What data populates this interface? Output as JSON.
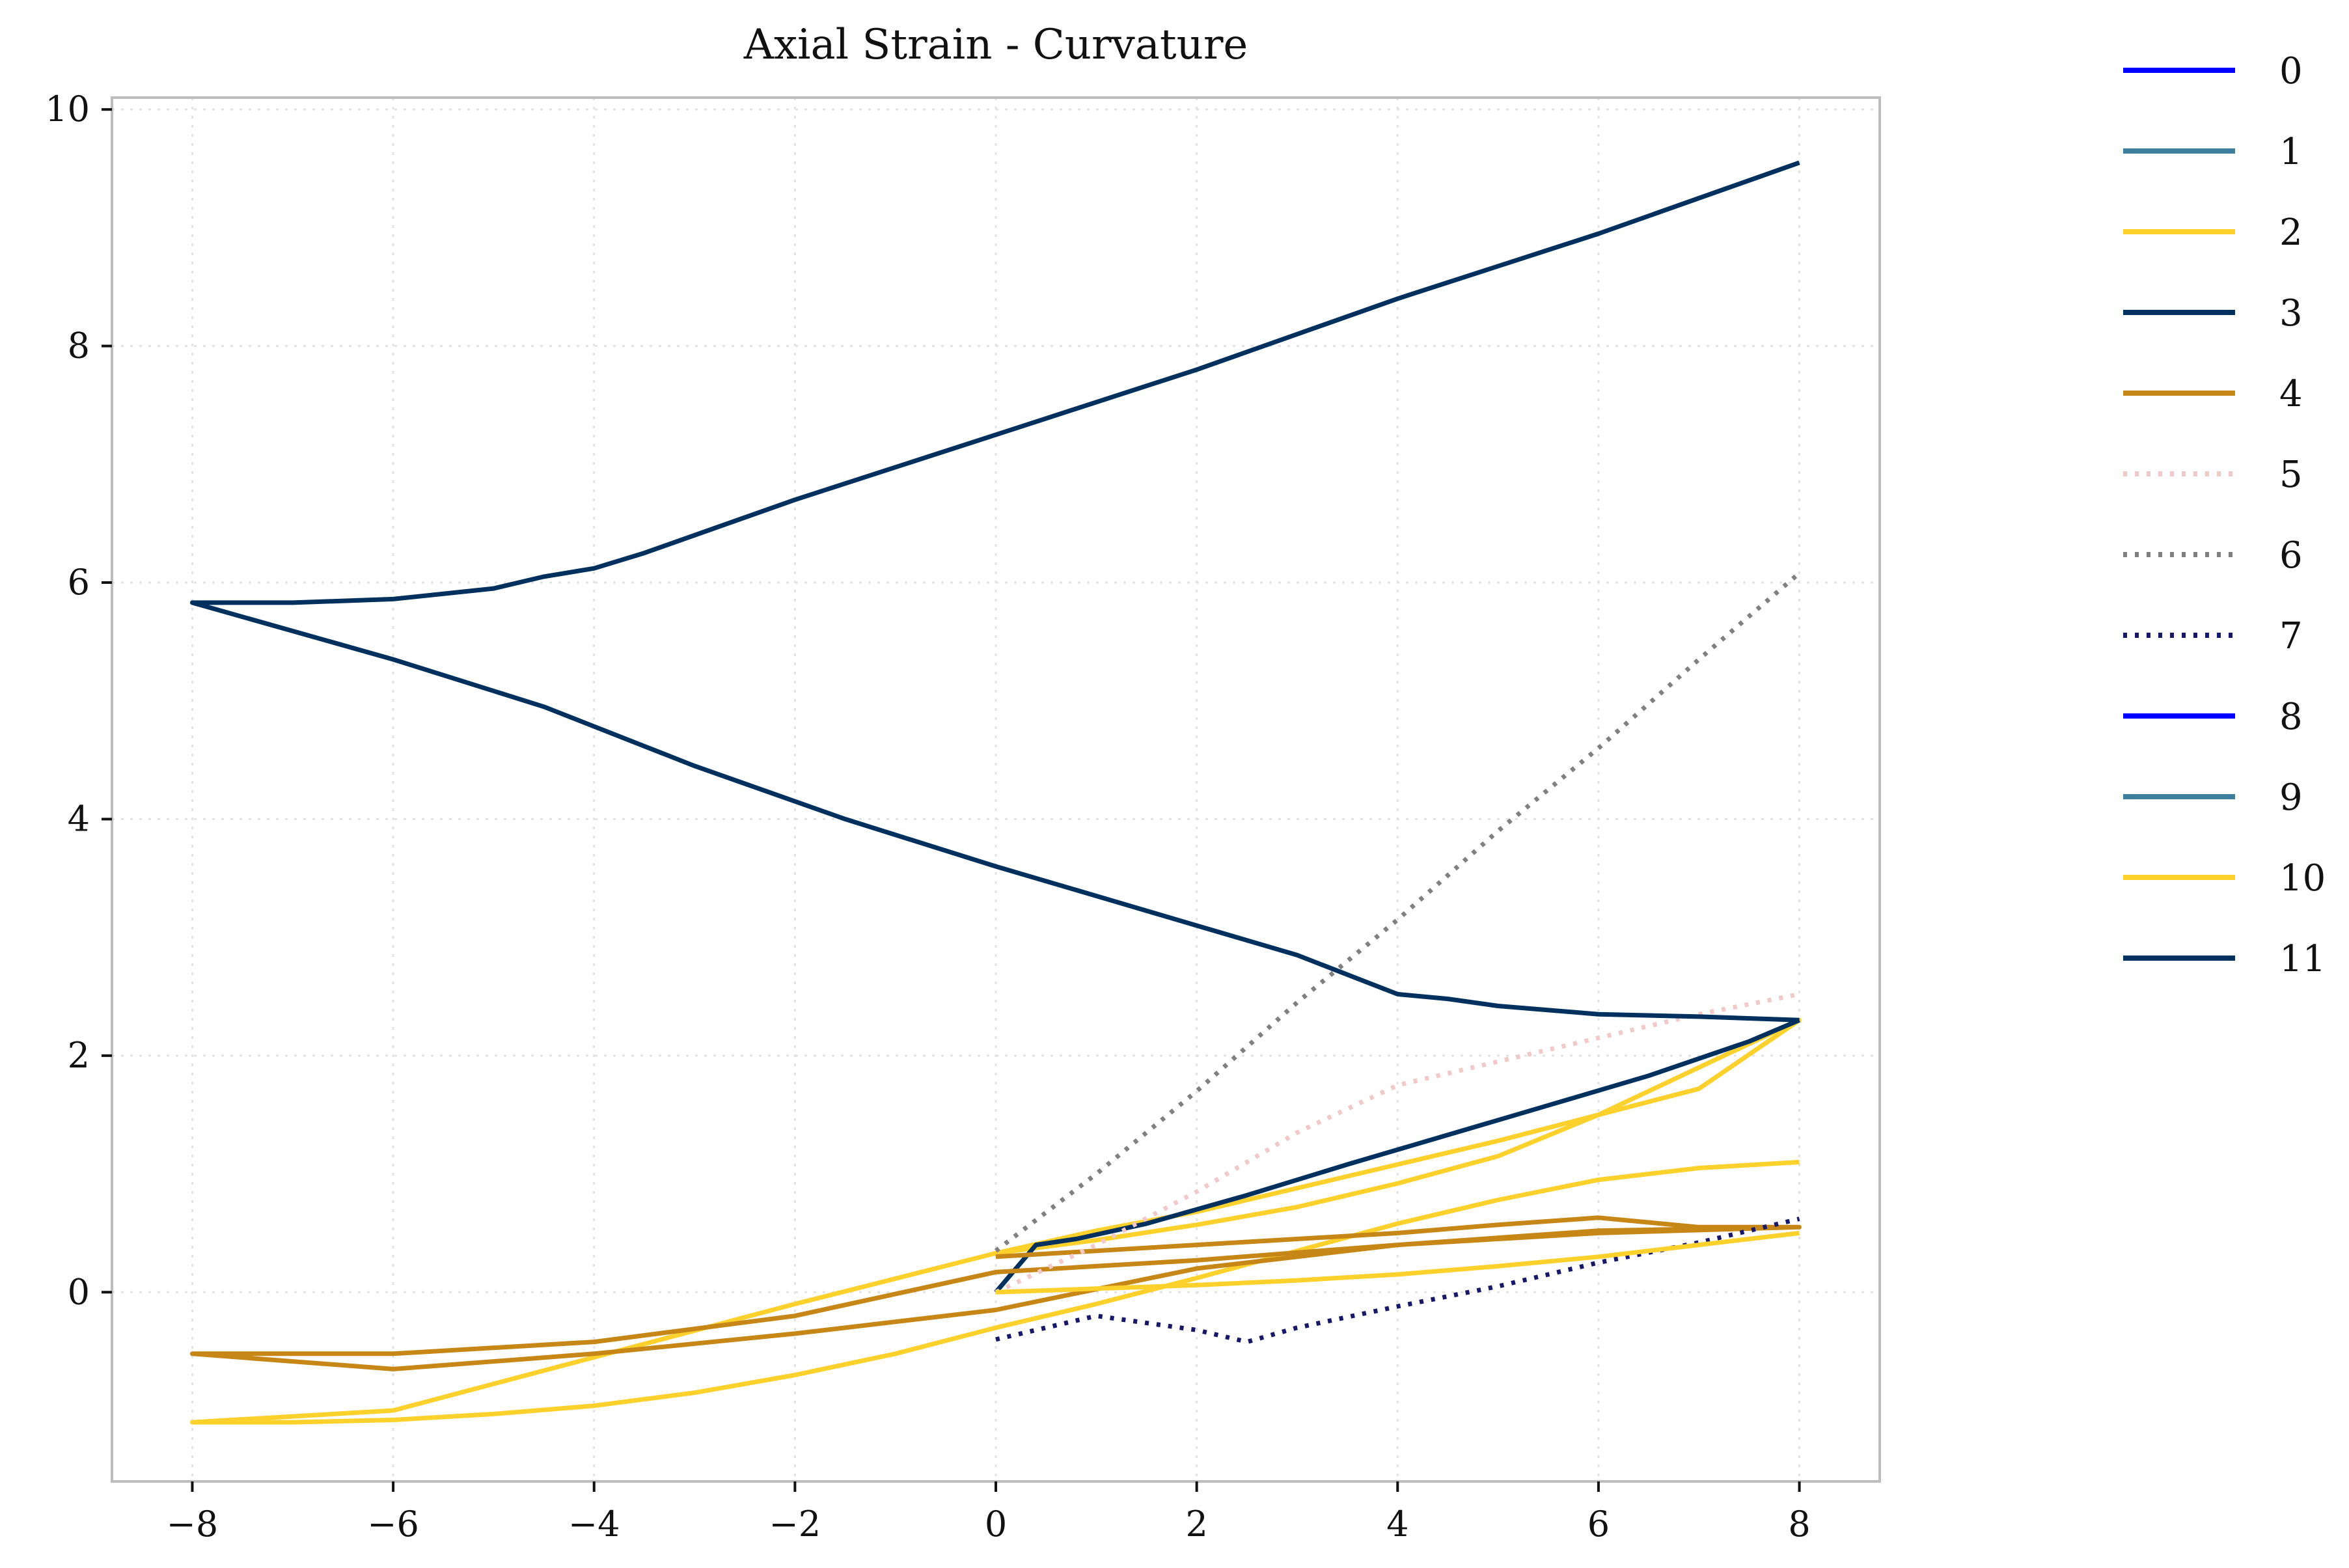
{
  "chart_data": {
    "type": "line",
    "title": "Axial Strain - Curvature",
    "xlabel": "",
    "ylabel": "",
    "xlim": [
      -8.8,
      8.8
    ],
    "ylim": [
      -1.6,
      10.1
    ],
    "xticks": [
      -8,
      -6,
      -4,
      -2,
      0,
      2,
      4,
      6,
      8
    ],
    "xtick_labels": [
      "−8",
      "−6",
      "−4",
      "−2",
      "0",
      "2",
      "4",
      "6",
      "8"
    ],
    "yticks": [
      0,
      2,
      4,
      6,
      8,
      10
    ],
    "ytick_labels": [
      "0",
      "2",
      "4",
      "6",
      "8",
      "10"
    ],
    "grid": true,
    "legend_position": "outside-right",
    "series": [
      {
        "name": "0",
        "color": "#0000ff",
        "dash": "solid",
        "x": [],
        "y": []
      },
      {
        "name": "1",
        "color": "#3f7f9f",
        "dash": "solid",
        "x": [],
        "y": []
      },
      {
        "name": "2",
        "color": "#fdd12b",
        "dash": "solid",
        "x": [
          0,
          1,
          2,
          3,
          4,
          5,
          6,
          7,
          8,
          7,
          6,
          5,
          4,
          3,
          2,
          1,
          0,
          -2,
          -4,
          -6,
          -8,
          -7,
          -6,
          -5,
          -4,
          -3,
          -2,
          -1,
          0,
          1,
          2,
          3,
          4,
          5,
          6,
          7,
          8
        ],
        "y": [
          0.33,
          0.52,
          0.68,
          0.88,
          1.08,
          1.28,
          1.5,
          1.72,
          2.3,
          1.9,
          1.5,
          1.15,
          0.92,
          0.72,
          0.57,
          0.44,
          0.33,
          -0.1,
          -0.55,
          -1.0,
          -1.1,
          -1.1,
          -1.08,
          -1.03,
          -0.96,
          -0.85,
          -0.7,
          -0.52,
          -0.3,
          -0.1,
          0.12,
          0.35,
          0.58,
          0.78,
          0.95,
          1.05,
          1.1
        ]
      },
      {
        "name": "3",
        "color": "#00305e",
        "dash": "solid",
        "x": [
          0,
          0.4,
          0.8,
          1.5,
          2.5,
          3.5,
          4.5,
          5.5,
          6.5,
          7.5,
          8
        ],
        "y": [
          0,
          0.4,
          0.45,
          0.58,
          0.82,
          1.08,
          1.33,
          1.58,
          1.83,
          2.12,
          2.3
        ]
      },
      {
        "name": "4",
        "color": "#c68716",
        "dash": "solid",
        "x": [
          0,
          1,
          2,
          3,
          4,
          5,
          6,
          7,
          8,
          6,
          4,
          2,
          0,
          -2,
          -4,
          -6,
          -8,
          -6,
          -4,
          -2,
          0,
          1,
          2,
          4,
          6,
          8
        ],
        "y": [
          0.3,
          0.35,
          0.4,
          0.45,
          0.5,
          0.57,
          0.63,
          0.55,
          0.55,
          0.5,
          0.4,
          0.2,
          -0.15,
          -0.35,
          -0.52,
          -0.65,
          -0.52,
          -0.52,
          -0.42,
          -0.2,
          0.17,
          0.22,
          0.27,
          0.4,
          0.52,
          0.55
        ]
      },
      {
        "name": "5",
        "color": "#f2c8c8",
        "dash": "dotted",
        "x": [
          0,
          1,
          2,
          3,
          4,
          5,
          6,
          7,
          8
        ],
        "y": [
          0,
          0.4,
          0.85,
          1.35,
          1.75,
          1.95,
          2.15,
          2.35,
          2.52
        ]
      },
      {
        "name": "6",
        "color": "#808080",
        "dash": "dotted",
        "x": [
          0,
          1,
          2,
          3,
          4,
          5,
          6,
          7,
          8
        ],
        "y": [
          0.35,
          1.0,
          1.7,
          2.45,
          3.15,
          3.9,
          4.6,
          5.35,
          6.08
        ]
      },
      {
        "name": "7",
        "color": "#18186b",
        "dash": "dotted",
        "x": [
          0,
          1,
          2,
          2.5,
          3,
          4,
          5,
          6,
          7,
          8
        ],
        "y": [
          -0.4,
          -0.2,
          -0.32,
          -0.42,
          -0.3,
          -0.12,
          0.05,
          0.25,
          0.42,
          0.62
        ]
      },
      {
        "name": "8",
        "color": "#0000ff",
        "dash": "solid",
        "x": [],
        "y": []
      },
      {
        "name": "9",
        "color": "#3f7f9f",
        "dash": "solid",
        "x": [],
        "y": []
      },
      {
        "name": "10",
        "color": "#fdd12b",
        "dash": "solid",
        "x": [
          0,
          1,
          2,
          3,
          4,
          5,
          6,
          7,
          8
        ],
        "y": [
          0,
          0.03,
          0.06,
          0.1,
          0.15,
          0.22,
          0.3,
          0.4,
          0.5
        ]
      },
      {
        "name": "11",
        "color": "#00305e",
        "dash": "solid",
        "x": [
          8,
          7,
          6,
          5,
          4.5,
          4,
          3,
          2,
          1,
          0,
          -1.5,
          -3,
          -4.5,
          -6,
          -8,
          -7,
          -6,
          -5,
          -4.5,
          -4,
          -3.5,
          -2,
          0,
          2,
          4,
          6,
          8
        ],
        "y": [
          2.3,
          2.33,
          2.35,
          2.42,
          2.48,
          2.52,
          2.85,
          3.1,
          3.35,
          3.6,
          4.0,
          4.45,
          4.95,
          5.35,
          5.83,
          5.83,
          5.86,
          5.95,
          6.05,
          6.12,
          6.25,
          6.7,
          7.25,
          7.8,
          8.4,
          8.95,
          9.55
        ]
      }
    ]
  }
}
